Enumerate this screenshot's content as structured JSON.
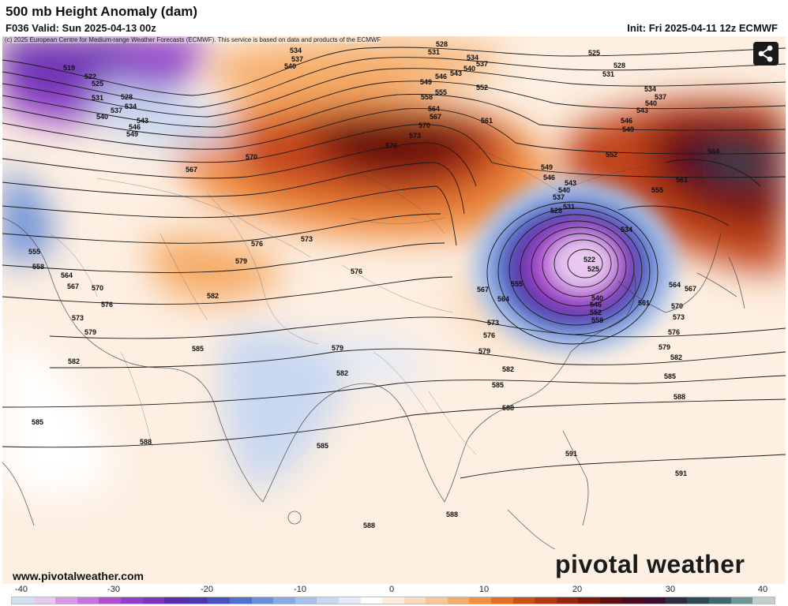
{
  "header": {
    "title": "500 mb Height Anomaly (dam)",
    "valid": "F036 Valid: Sun 2025-04-13 00z",
    "init": "Init: Fri 2025-04-11 12z ECMWF"
  },
  "credit": "(c) 2025 European Centre for Medium-range Weather Forecasts (ECMWF). This service is based on data and products of the ECMWF",
  "website": "www.pivotalweather.com",
  "brand": "pivotal weather",
  "share_icon": "share-icon",
  "colorbar": {
    "ticks": [
      "-40",
      "-30",
      "-20",
      "-10",
      "0",
      "10",
      "20",
      "30",
      "40"
    ],
    "colors": [
      "#cfe1f2",
      "#e8c9f0",
      "#d79be6",
      "#c674dd",
      "#b04fd0",
      "#8f3fc8",
      "#7a35be",
      "#5b2ea8",
      "#4d36b0",
      "#4752be",
      "#4e72cc",
      "#6a8fd8",
      "#89a9e2",
      "#a8c1ea",
      "#c8d8f1",
      "#e2ebf7",
      "#ffffff",
      "#fdeedd",
      "#fbdcbd",
      "#f9c797",
      "#f6ad6b",
      "#f18f43",
      "#e46f24",
      "#cd5117",
      "#b33a12",
      "#97260f",
      "#7c180c",
      "#5f0f10",
      "#4a0d1e",
      "#3a0f30",
      "#2e2b43",
      "#2e4a57",
      "#3f6a6d",
      "#6f9595",
      "#c3cfcf"
    ]
  },
  "contour_labels": {
    "h519": "519",
    "h522": "522",
    "h525": "525",
    "h528": "528",
    "h531": "531",
    "h534": "534",
    "h537": "537",
    "h540": "540",
    "h543": "543",
    "h546": "546",
    "h549": "549",
    "h552": "552",
    "h555": "555",
    "h558": "558",
    "h561": "561",
    "h564": "564",
    "h567": "567",
    "h570": "570",
    "h573": "573",
    "h576": "576",
    "h579": "579",
    "h582": "582",
    "h585": "585",
    "h588": "588",
    "h591": "591"
  }
}
